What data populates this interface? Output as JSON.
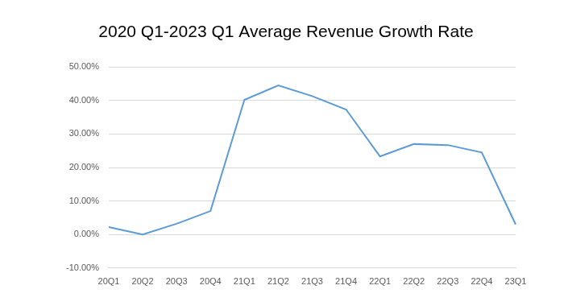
{
  "chart_data": {
    "type": "line",
    "title": "2020 Q1-2023 Q1 Average Revenue Growth Rate",
    "categories": [
      "20Q1",
      "20Q2",
      "20Q3",
      "20Q4",
      "21Q1",
      "21Q2",
      "21Q3",
      "21Q4",
      "22Q1",
      "22Q2",
      "22Q3",
      "22Q4",
      "23Q1"
    ],
    "values": [
      2.2,
      0.0,
      3.2,
      7.0,
      40.2,
      44.5,
      41.3,
      37.3,
      23.3,
      27.0,
      26.7,
      24.5,
      3.0
    ],
    "color": "#5b9bd5",
    "marker": "none",
    "line_style": "solid",
    "ylim": [
      -10,
      50
    ],
    "yticks": [
      {
        "value": -10,
        "label": "-10.00%"
      },
      {
        "value": 0,
        "label": "0.00%"
      },
      {
        "value": 10,
        "label": "10.00%"
      },
      {
        "value": 20,
        "label": "20.00%"
      },
      {
        "value": 30,
        "label": "30.00%"
      },
      {
        "value": 40,
        "label": "40.00%"
      },
      {
        "value": 50,
        "label": "50.00%"
      }
    ],
    "grid": true
  }
}
